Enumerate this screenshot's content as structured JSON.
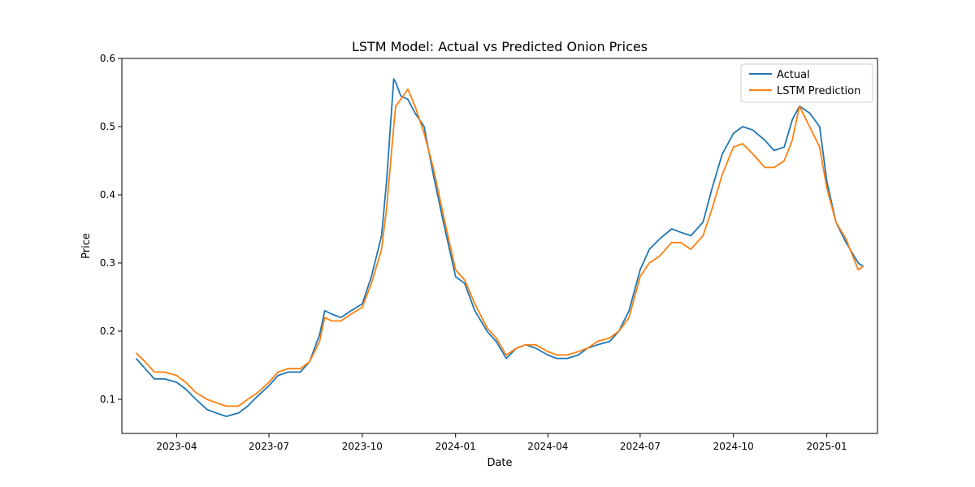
{
  "chart_data": {
    "type": "line",
    "title": "LSTM Model: Actual vs Predicted Onion Prices",
    "xlabel": "Date",
    "ylabel": "Price",
    "xlim": [
      "2023-02-06",
      "2025-02-20"
    ],
    "ylim": [
      0.05,
      0.6
    ],
    "x_ticks": [
      "2023-04-01",
      "2023-07-01",
      "2023-10-01",
      "2024-01-01",
      "2024-04-01",
      "2024-07-01",
      "2024-10-01",
      "2025-01-01"
    ],
    "x_tick_labels": [
      "2023-04",
      "2023-07",
      "2023-10",
      "2024-01",
      "2024-04",
      "2024-07",
      "2024-10",
      "2025-01"
    ],
    "y_ticks": [
      0.1,
      0.2,
      0.3,
      0.4,
      0.5,
      0.6
    ],
    "y_tick_labels": [
      "0.1",
      "0.2",
      "0.3",
      "0.4",
      "0.5",
      "0.6"
    ],
    "grid": false,
    "legend_position": "top-right",
    "colors": {
      "actual": "#1f77b4",
      "prediction": "#ff7f0e"
    },
    "series": [
      {
        "name": "Actual",
        "x": [
          "2023-02-20",
          "2023-03-01",
          "2023-03-10",
          "2023-03-20",
          "2023-04-01",
          "2023-04-10",
          "2023-04-20",
          "2023-05-01",
          "2023-05-10",
          "2023-05-20",
          "2023-06-01",
          "2023-06-10",
          "2023-06-20",
          "2023-07-01",
          "2023-07-10",
          "2023-07-20",
          "2023-08-01",
          "2023-08-10",
          "2023-08-20",
          "2023-08-25",
          "2023-09-01",
          "2023-09-10",
          "2023-09-20",
          "2023-10-01",
          "2023-10-10",
          "2023-10-20",
          "2023-10-25",
          "2023-11-01",
          "2023-11-03",
          "2023-11-08",
          "2023-11-15",
          "2023-11-22",
          "2023-12-01",
          "2023-12-10",
          "2023-12-20",
          "2024-01-01",
          "2024-01-10",
          "2024-01-20",
          "2024-02-01",
          "2024-02-10",
          "2024-02-20",
          "2024-03-01",
          "2024-03-10",
          "2024-03-20",
          "2024-04-01",
          "2024-04-10",
          "2024-04-20",
          "2024-05-01",
          "2024-05-10",
          "2024-05-20",
          "2024-06-01",
          "2024-06-10",
          "2024-06-20",
          "2024-07-01",
          "2024-07-10",
          "2024-07-20",
          "2024-08-01",
          "2024-08-10",
          "2024-08-20",
          "2024-09-01",
          "2024-09-10",
          "2024-09-20",
          "2024-10-01",
          "2024-10-10",
          "2024-10-20",
          "2024-11-01",
          "2024-11-10",
          "2024-11-20",
          "2024-11-28",
          "2024-12-05",
          "2024-12-15",
          "2024-12-25",
          "2025-01-01",
          "2025-01-10",
          "2025-01-20",
          "2025-02-01",
          "2025-02-06"
        ],
        "values": [
          0.16,
          0.145,
          0.13,
          0.13,
          0.125,
          0.115,
          0.1,
          0.085,
          0.08,
          0.075,
          0.08,
          0.09,
          0.105,
          0.12,
          0.135,
          0.14,
          0.14,
          0.155,
          0.195,
          0.23,
          0.225,
          0.22,
          0.23,
          0.24,
          0.28,
          0.34,
          0.42,
          0.57,
          0.565,
          0.545,
          0.54,
          0.52,
          0.5,
          0.43,
          0.36,
          0.28,
          0.27,
          0.23,
          0.2,
          0.185,
          0.16,
          0.175,
          0.18,
          0.175,
          0.165,
          0.16,
          0.16,
          0.165,
          0.175,
          0.18,
          0.185,
          0.2,
          0.23,
          0.29,
          0.32,
          0.335,
          0.35,
          0.345,
          0.34,
          0.36,
          0.41,
          0.46,
          0.49,
          0.5,
          0.495,
          0.48,
          0.465,
          0.47,
          0.51,
          0.53,
          0.52,
          0.5,
          0.42,
          0.36,
          0.33,
          0.3,
          0.295
        ]
      },
      {
        "name": "LSTM Prediction",
        "x": [
          "2023-02-20",
          "2023-03-01",
          "2023-03-10",
          "2023-03-20",
          "2023-04-01",
          "2023-04-10",
          "2023-04-20",
          "2023-05-01",
          "2023-05-10",
          "2023-05-20",
          "2023-06-01",
          "2023-06-10",
          "2023-06-20",
          "2023-07-01",
          "2023-07-10",
          "2023-07-20",
          "2023-08-01",
          "2023-08-10",
          "2023-08-20",
          "2023-08-25",
          "2023-09-01",
          "2023-09-10",
          "2023-09-20",
          "2023-10-01",
          "2023-10-10",
          "2023-10-20",
          "2023-10-25",
          "2023-11-01",
          "2023-11-03",
          "2023-11-08",
          "2023-11-15",
          "2023-11-22",
          "2023-12-01",
          "2023-12-10",
          "2023-12-20",
          "2024-01-01",
          "2024-01-10",
          "2024-01-20",
          "2024-02-01",
          "2024-02-10",
          "2024-02-20",
          "2024-03-01",
          "2024-03-10",
          "2024-03-20",
          "2024-04-01",
          "2024-04-10",
          "2024-04-20",
          "2024-05-01",
          "2024-05-10",
          "2024-05-20",
          "2024-06-01",
          "2024-06-10",
          "2024-06-20",
          "2024-07-01",
          "2024-07-10",
          "2024-07-20",
          "2024-08-01",
          "2024-08-10",
          "2024-08-20",
          "2024-09-01",
          "2024-09-10",
          "2024-09-20",
          "2024-10-01",
          "2024-10-10",
          "2024-10-20",
          "2024-11-01",
          "2024-11-10",
          "2024-11-20",
          "2024-11-28",
          "2024-12-05",
          "2024-12-15",
          "2024-12-25",
          "2025-01-01",
          "2025-01-10",
          "2025-01-20",
          "2025-02-01",
          "2025-02-06"
        ],
        "values": [
          0.168,
          0.155,
          0.14,
          0.14,
          0.135,
          0.125,
          0.11,
          0.1,
          0.095,
          0.09,
          0.09,
          0.1,
          0.11,
          0.125,
          0.14,
          0.145,
          0.145,
          0.155,
          0.185,
          0.22,
          0.215,
          0.215,
          0.225,
          0.235,
          0.27,
          0.32,
          0.38,
          0.5,
          0.53,
          0.54,
          0.555,
          0.53,
          0.49,
          0.44,
          0.37,
          0.29,
          0.275,
          0.24,
          0.205,
          0.19,
          0.165,
          0.175,
          0.18,
          0.18,
          0.17,
          0.165,
          0.165,
          0.17,
          0.175,
          0.185,
          0.19,
          0.2,
          0.22,
          0.28,
          0.3,
          0.31,
          0.33,
          0.33,
          0.32,
          0.34,
          0.38,
          0.43,
          0.47,
          0.475,
          0.46,
          0.44,
          0.44,
          0.45,
          0.48,
          0.53,
          0.5,
          0.47,
          0.41,
          0.36,
          0.335,
          0.29,
          0.295
        ]
      }
    ]
  }
}
